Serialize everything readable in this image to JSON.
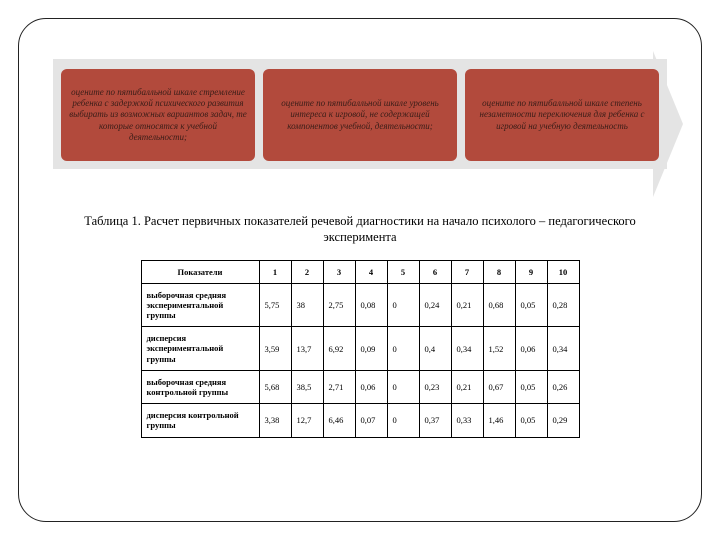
{
  "flow": {
    "boxes": [
      "оцените по пятибалльной шкале стремление ребенка с задержкой психического развития выбирать из возможных вариантов задач, те которые относятся к учебной деятельности;",
      "оцените по пятибалльной шкале уровень интереса к игровой, не содержащей компонентов учебной, деятельности;",
      "оцените по пятибалльной шкале степень незаметности переключения для ребенка с игровой на учебную деятельность"
    ],
    "box_bg": "#b24a3c",
    "arrow_bg": "#e4e4e4"
  },
  "caption": "Таблица 1. Расчет первичных показателей речевой диагностики  на начало психолого – педагогического эксперимента",
  "table": {
    "header_label": "Показатели",
    "columns": [
      "1",
      "2",
      "3",
      "4",
      "5",
      "6",
      "7",
      "8",
      "9",
      "10"
    ],
    "rows": [
      {
        "label": "выборочная средняя экспериментальной группы",
        "cells": [
          "5,75",
          "38",
          "2,75",
          "0,08",
          "0",
          "0,24",
          "0,21",
          "0,68",
          "0,05",
          "0,28"
        ]
      },
      {
        "label": "дисперсия экспериментальной группы",
        "cells": [
          "3,59",
          "13,7",
          "6,92",
          "0,09",
          "0",
          "0,4",
          "0,34",
          "1,52",
          "0,06",
          "0,34"
        ]
      },
      {
        "label": "выборочная средняя контрольной группы",
        "cells": [
          "5,68",
          "38,5",
          "2,71",
          "0,06",
          "0",
          "0,23",
          "0,21",
          "0,67",
          "0,05",
          "0,26"
        ]
      },
      {
        "label": "дисперсия контрольной группы",
        "cells": [
          "3,38",
          "12,7",
          "6,46",
          "0,07",
          "0",
          "0,37",
          "0,33",
          "1,46",
          "0,05",
          "0,29"
        ]
      }
    ]
  }
}
